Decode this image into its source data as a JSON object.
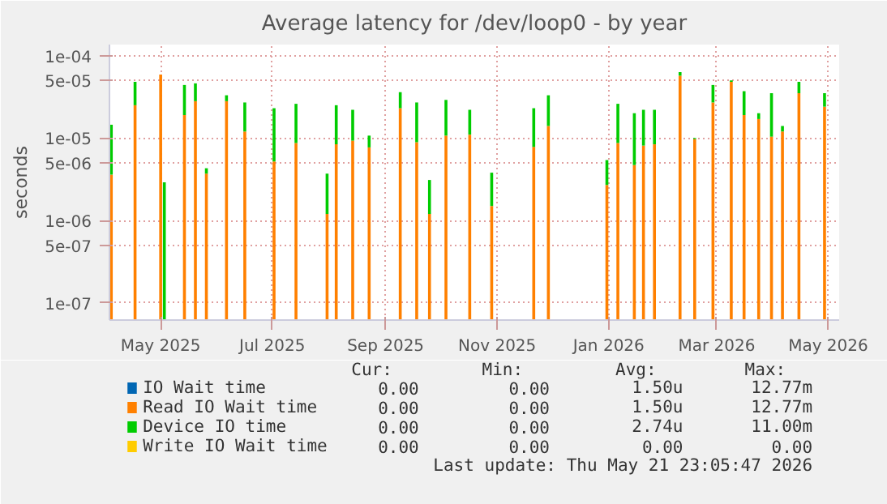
{
  "chart_data": {
    "type": "bar",
    "stacked": true,
    "title": "Average latency for /dev/loop0 - by year",
    "ylabel": "seconds",
    "log": "y",
    "grid": true,
    "legend": "bottom",
    "x": [
      "2025-04-04",
      "2025-04-17",
      "2025-05-01",
      "2025-05-03",
      "2025-05-14",
      "2025-05-20",
      "2025-05-26",
      "2025-06-06",
      "2025-06-16",
      "2025-07-02",
      "2025-07-14",
      "2025-07-31",
      "2025-08-05",
      "2025-08-14",
      "2025-08-23",
      "2025-09-09",
      "2025-09-18",
      "2025-09-25",
      "2025-10-04",
      "2025-10-17",
      "2025-10-29",
      "2025-11-21",
      "2025-11-29",
      "2025-12-31",
      "2026-01-06",
      "2026-01-15",
      "2026-01-20",
      "2026-01-26",
      "2026-02-09",
      "2026-02-17",
      "2026-02-27",
      "2026-03-09",
      "2026-03-16",
      "2026-03-24",
      "2026-03-31",
      "2026-04-06",
      "2026-04-15",
      "2026-04-29"
    ],
    "xlim": [
      "2025-04-03",
      "2026-05-07"
    ],
    "xticks": [
      {
        "value": "2025-05-01",
        "label": "May 2025"
      },
      {
        "value": "2025-07-01",
        "label": "Jul 2025"
      },
      {
        "value": "2025-09-01",
        "label": "Sep 2025"
      },
      {
        "value": "2025-11-01",
        "label": "Nov 2025"
      },
      {
        "value": "2026-01-01",
        "label": "Jan 2026"
      },
      {
        "value": "2026-03-01",
        "label": "Mar 2026"
      },
      {
        "value": "2026-05-01",
        "label": "May 2026"
      }
    ],
    "ylim": [
      6.2e-08,
      0.000136
    ],
    "yticks": [
      {
        "value": 1e-07,
        "label": "1e-07"
      },
      {
        "value": 5e-07,
        "label": "5e-07"
      },
      {
        "value": 1e-06,
        "label": "1e-06"
      },
      {
        "value": 5e-06,
        "label": "5e-06"
      },
      {
        "value": 1e-05,
        "label": "1e-05"
      },
      {
        "value": 5e-05,
        "label": "5e-05"
      },
      {
        "value": 0.0001,
        "label": "1e-04"
      }
    ],
    "series": [
      {
        "name": "IO Wait time",
        "color": "#0066b3",
        "values": [
          null,
          null,
          null,
          null,
          null,
          null,
          null,
          null,
          null,
          null,
          null,
          null,
          null,
          null,
          null,
          null,
          null,
          null,
          null,
          null,
          null,
          null,
          null,
          null,
          null,
          null,
          null,
          null,
          null,
          null,
          null,
          null,
          null,
          null,
          null,
          null,
          null,
          null
        ]
      },
      {
        "name": "Read IO Wait time",
        "color": "#ff8000",
        "values": [
          3.6e-06,
          2.5e-05,
          5.9e-05,
          null,
          1.9e-05,
          2.8e-05,
          3.7e-06,
          2.8e-05,
          1.2e-05,
          5.2e-06,
          8.7e-06,
          1.2e-06,
          8.4e-06,
          9.3e-06,
          7.7e-06,
          2.3e-05,
          8.9e-06,
          1.2e-06,
          1.07e-05,
          1.1e-05,
          1.5e-06,
          7.8e-06,
          1.4e-05,
          2.7e-06,
          8.7e-06,
          4.7e-06,
          8.1e-06,
          8.4e-06,
          5.7e-05,
          9.7e-06,
          2.7e-05,
          4.8e-05,
          1.9e-05,
          1.7e-05,
          1.04e-05,
          1.2e-05,
          3.5e-05,
          2.4e-05
        ]
      },
      {
        "name": "Device IO time",
        "color": "#00cc00",
        "values": [
          1.09e-05,
          2.3e-05,
          null,
          2.9e-06,
          2.5e-05,
          1.8e-05,
          6e-07,
          5e-06,
          1.5e-05,
          1.78e-05,
          1.73e-05,
          2.5e-06,
          1.66e-05,
          1.27e-05,
          3e-06,
          1.3e-05,
          1.81e-05,
          1.9e-06,
          1.83e-05,
          1.1e-05,
          2.3e-06,
          1.52e-05,
          1.9e-05,
          2.7e-06,
          1.73e-05,
          1.53e-05,
          1.39e-05,
          1.36e-05,
          6e-06,
          3e-07,
          1.7e-05,
          2e-06,
          1.8e-05,
          3e-06,
          2.46e-05,
          2e-06,
          1.3e-05,
          1.1e-05
        ]
      },
      {
        "name": "Write IO Wait time",
        "color": "#ffcc00",
        "values": [
          null,
          null,
          null,
          null,
          null,
          null,
          null,
          null,
          null,
          null,
          null,
          null,
          null,
          null,
          null,
          null,
          null,
          null,
          null,
          null,
          null,
          null,
          null,
          null,
          null,
          null,
          null,
          null,
          null,
          null,
          null,
          null,
          null,
          null,
          null,
          null,
          null,
          null
        ]
      }
    ],
    "annotations": [
      "Cur:",
      "Min:",
      "Avg:",
      "Max:",
      "0.00",
      "0.00",
      "1.50u",
      "12.77m",
      "0.00",
      "0.00",
      "1.50u",
      "12.77m",
      "0.00",
      "0.00",
      "2.74u",
      "11.00m",
      "0.00",
      "0.00",
      "0.00",
      "0.00",
      "Last update: Thu May 21 23:05:47 2026"
    ]
  }
}
